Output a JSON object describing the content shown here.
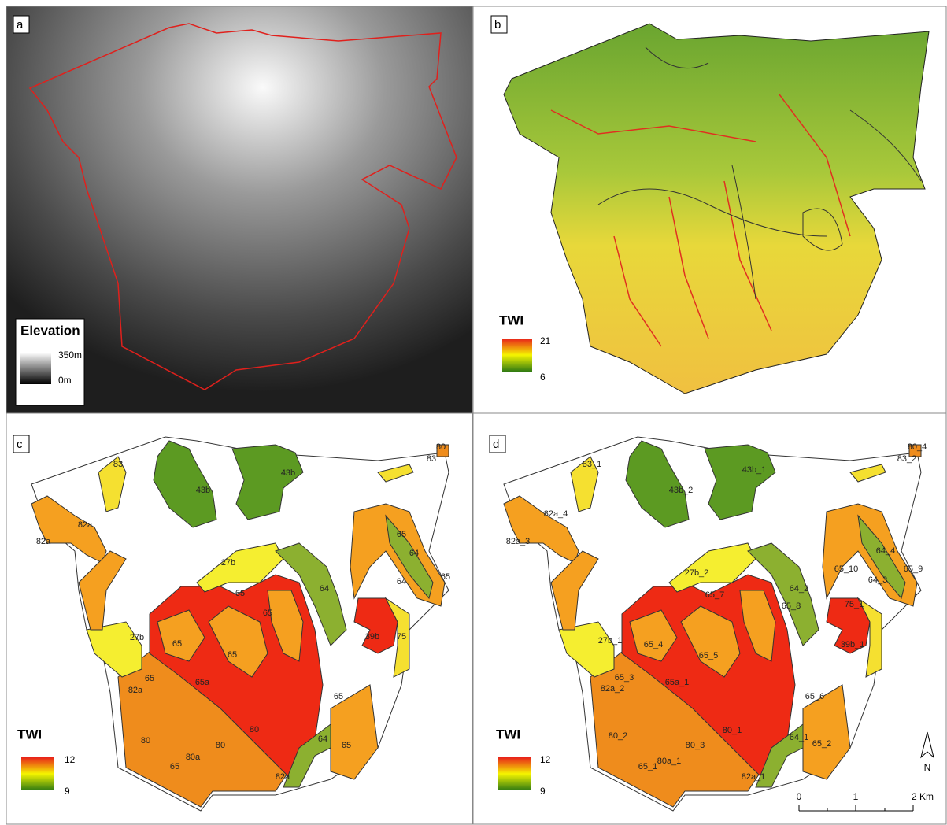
{
  "panels": [
    {
      "letter": "a",
      "legend": {
        "title": "Elevation",
        "max": "350m",
        "min": "0m"
      }
    },
    {
      "letter": "b",
      "legend": {
        "title": "TWI",
        "max": "21",
        "min": "6"
      }
    },
    {
      "letter": "c",
      "legend": {
        "title": "TWI",
        "max": "12",
        "min": "9"
      },
      "zones": [
        "80",
        "83",
        "83",
        "43b",
        "43b",
        "82a",
        "82a",
        "65",
        "64",
        "64",
        "65",
        "27b",
        "65",
        "65",
        "64",
        "65",
        "65",
        "39b",
        "75",
        "27b",
        "65",
        "65a",
        "82a",
        "65",
        "80",
        "80",
        "80",
        "80a",
        "64",
        "65",
        "65",
        "82a"
      ]
    },
    {
      "letter": "d",
      "legend": {
        "title": "TWI",
        "max": "12",
        "min": "9"
      },
      "zones": [
        "80_4",
        "83_2",
        "83_1",
        "43b_1",
        "43b_2",
        "82a_4",
        "82a_3",
        "64_4",
        "65_9",
        "65_10",
        "64_3",
        "27b_2",
        "64_2",
        "65_7",
        "75_1",
        "65_8",
        "27b_1",
        "65_4",
        "65_5",
        "39b_1",
        "65_3",
        "65a_1",
        "82a_2",
        "65_6",
        "80_1",
        "80_2",
        "64_1",
        "80_3",
        "65_2",
        "80a_1",
        "65_1",
        "82a_1"
      ],
      "scale_bar": {
        "labels": [
          "0",
          "1",
          "2 Km"
        ]
      },
      "north": "N"
    }
  ]
}
